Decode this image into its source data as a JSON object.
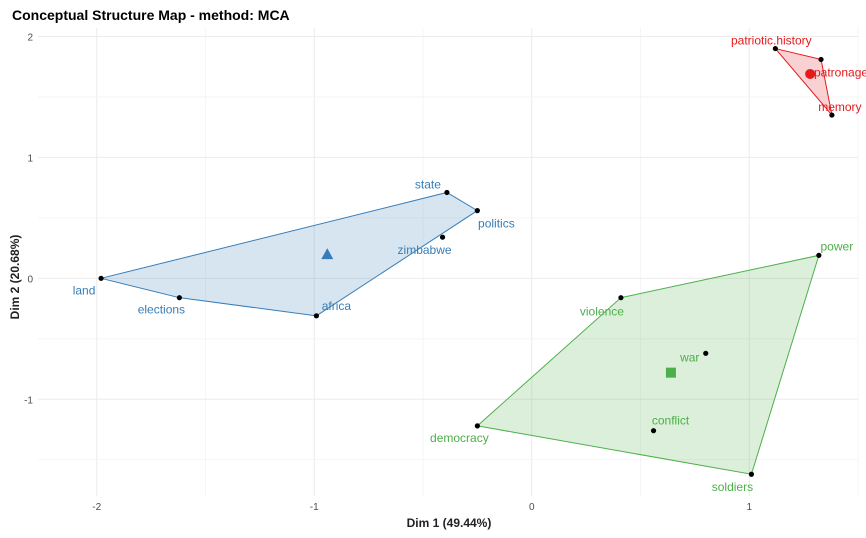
{
  "chart_data": {
    "type": "scatter",
    "title": "Conceptual Structure Map - method: MCA",
    "xlabel": "Dim 1 (49.44%)",
    "ylabel": "Dim 2 (20.68%)",
    "xlim": [
      -2.27,
      1.5
    ],
    "ylim": [
      -1.8,
      2.07
    ],
    "xticks": [
      -2,
      -1,
      0,
      1
    ],
    "yticks": [
      -1,
      0,
      1,
      2
    ],
    "grid": true,
    "clusters": [
      {
        "color": "#377eb8",
        "centroid": {
          "x": -0.94,
          "y": 0.2,
          "marker": "triangle"
        },
        "points": [
          {
            "label": "land",
            "x": -1.98,
            "y": 0.0
          },
          {
            "label": "elections",
            "x": -1.62,
            "y": -0.16
          },
          {
            "label": "africa",
            "x": -0.99,
            "y": -0.31
          },
          {
            "label": "zimbabwe",
            "x": -0.41,
            "y": 0.34
          },
          {
            "label": "politics",
            "x": -0.25,
            "y": 0.56
          },
          {
            "label": "state",
            "x": -0.39,
            "y": 0.71
          }
        ],
        "hull": [
          "land",
          "elections",
          "africa",
          "politics",
          "state"
        ]
      },
      {
        "color": "#4daf4a",
        "centroid": {
          "x": 0.64,
          "y": -0.78,
          "marker": "square"
        },
        "points": [
          {
            "label": "power",
            "x": 1.32,
            "y": 0.19
          },
          {
            "label": "violence",
            "x": 0.41,
            "y": -0.16
          },
          {
            "label": "war",
            "x": 0.8,
            "y": -0.62
          },
          {
            "label": "conflict",
            "x": 0.56,
            "y": -1.26
          },
          {
            "label": "democracy",
            "x": -0.25,
            "y": -1.22
          },
          {
            "label": "soldiers",
            "x": 1.01,
            "y": -1.62
          }
        ],
        "hull": [
          "violence",
          "power",
          "soldiers",
          "democracy"
        ]
      },
      {
        "color": "#e41a1c",
        "centroid": {
          "x": 1.28,
          "y": 1.69,
          "marker": "circle"
        },
        "points": [
          {
            "label": "patriotic.history",
            "x": 1.12,
            "y": 1.9
          },
          {
            "label": "patronage",
            "x": 1.33,
            "y": 1.81
          },
          {
            "label": "memory",
            "x": 1.38,
            "y": 1.35
          }
        ],
        "hull": [
          "patriotic.history",
          "patronage",
          "memory"
        ]
      }
    ]
  }
}
